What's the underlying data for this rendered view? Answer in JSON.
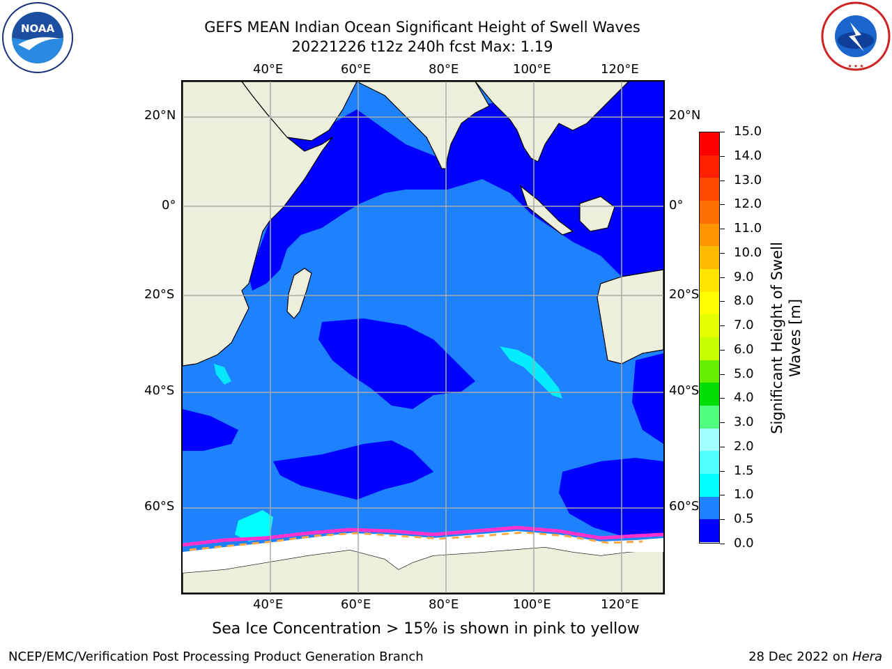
{
  "header": {
    "title_line1": "GEFS MEAN Indian Ocean Significant Height of Swell Waves",
    "title_line2": "20221226 t12z 240h fcst   Max: 1.19"
  },
  "logos": {
    "noaa": {
      "name": "noaa-logo",
      "text": "NOAA",
      "ring_text": "NATIONAL OCEANIC AND ATMOSPHERIC ADMINISTRATION · U.S. DEPARTMENT OF COMMERCE"
    },
    "nws": {
      "name": "nws-logo",
      "ring_text": "NATIONAL WEATHER SERVICE"
    }
  },
  "map": {
    "lon_labels_top": [
      "40°E",
      "60°E",
      "80°E",
      "100°E",
      "120°E"
    ],
    "lon_labels_bottom": [
      "40°E",
      "60°E",
      "80°E",
      "100°E",
      "120°E"
    ],
    "lat_labels_left": [
      "20°N",
      "0°",
      "20°S",
      "40°S",
      "60°S"
    ],
    "lat_labels_right": [
      "20°N",
      "0°",
      "20°S",
      "40°S",
      "60°S"
    ],
    "colors": {
      "land": "#eeeedd",
      "wave_0_0_5": "#0000ff",
      "wave_0_5_1_0": "#1e82ff",
      "wave_1_0_1_5": "#00ffff",
      "wave_1_5_2_0": "#50fff0",
      "ice_pink": "#ff33cc",
      "ice_orange": "#ffaa44",
      "gridline": "#aaaaaa"
    }
  },
  "colorbar": {
    "ticks": [
      "15.0",
      "14.0",
      "13.0",
      "12.0",
      "11.0",
      "10.0",
      "9.0",
      "8.0",
      "7.0",
      "6.0",
      "5.0",
      "4.0",
      "3.0",
      "2.0",
      "1.5",
      "1.0",
      "0.5",
      "0.0"
    ],
    "segments": [
      "#ff0000",
      "#ff2000",
      "#ff4800",
      "#ff6e00",
      "#ff9400",
      "#ffbb00",
      "#ffe500",
      "#ffff00",
      "#e5ff00",
      "#c8ff00",
      "#64ee00",
      "#00dd00",
      "#50ff80",
      "#a0ffff",
      "#50ffff",
      "#00ffff",
      "#1e82ff",
      "#0000ff"
    ],
    "label_line1": "Significant Height of Swell",
    "label_line2": "Waves [m]"
  },
  "notes": {
    "ice": "Sea Ice Concentration > 15% is shown in pink to yellow"
  },
  "footer": {
    "left": "NCEP/EMC/Verification Post Processing Product Generation Branch",
    "right_date": "28 Dec 2022 on ",
    "right_host": "Hera"
  }
}
